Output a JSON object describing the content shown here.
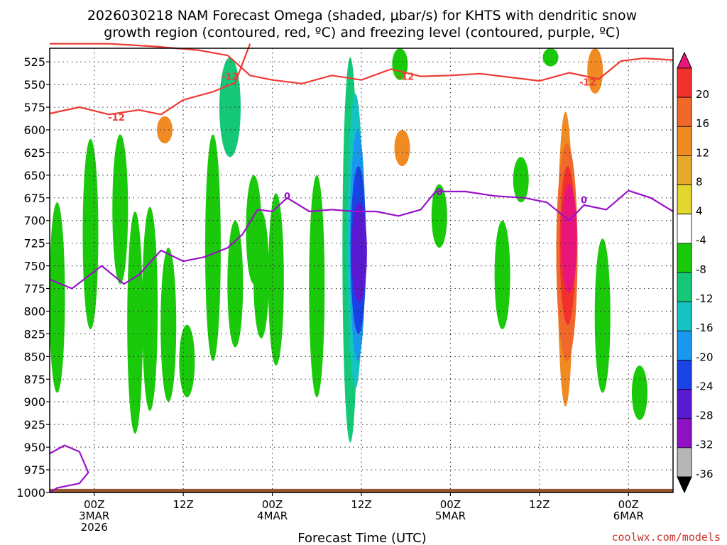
{
  "title_line1": "2026030218 NAM Forecast Omega (shaded, μbar/s) for KHTS with dendritic snow",
  "title_line2": "growth region (contoured, red, ºC) and freezing level (contoured, purple, ºC)",
  "credit": "coolwx.com/models",
  "chart_data": {
    "type": "heatmap",
    "xlabel": "Forecast Time (UTC)",
    "ylabel": "",
    "x_range_hours": [
      0,
      84
    ],
    "y_range_mb": [
      510,
      1000
    ],
    "y_ticks": [
      "525",
      "550",
      "575",
      "600",
      "625",
      "650",
      "675",
      "700",
      "725",
      "750",
      "775",
      "800",
      "825",
      "850",
      "875",
      "900",
      "925",
      "950",
      "975",
      "1000"
    ],
    "x_ticks": [
      {
        "hour": 6,
        "lines": [
          "00Z",
          "3MAR",
          "2026"
        ]
      },
      {
        "hour": 18,
        "lines": [
          "12Z"
        ]
      },
      {
        "hour": 30,
        "lines": [
          "00Z",
          "4MAR"
        ]
      },
      {
        "hour": 42,
        "lines": [
          "12Z"
        ]
      },
      {
        "hour": 54,
        "lines": [
          "00Z",
          "5MAR"
        ]
      },
      {
        "hour": 66,
        "lines": [
          "12Z"
        ]
      },
      {
        "hour": 78,
        "lines": [
          "00Z",
          "6MAR"
        ]
      }
    ],
    "grid": true,
    "colorbar": {
      "labels": [
        "20",
        "16",
        "12",
        "8",
        "4",
        "-4",
        "-8",
        "-12",
        "-16",
        "-20",
        "-24",
        "-28",
        "-32",
        "-36"
      ],
      "colors": [
        "#e8167a",
        "#f2302e",
        "#f0682a",
        "#f08a22",
        "#e7a92b",
        "#e3d630",
        "#ffffff",
        "#19c90a",
        "#14c878",
        "#16c3c3",
        "#1998ee",
        "#1a43e6",
        "#5a1ad2",
        "#8e12c4",
        "#b6b6b6",
        "#000000"
      ]
    },
    "omega_regions": [
      {
        "hour": 1.0,
        "p_top": 680,
        "p_bot": 890,
        "value": -6
      },
      {
        "hour": 5.5,
        "p_top": 610,
        "p_bot": 820,
        "value": -6
      },
      {
        "hour": 9.5,
        "p_top": 605,
        "p_bot": 770,
        "value": -6
      },
      {
        "hour": 11.5,
        "p_top": 690,
        "p_bot": 935,
        "value": -6
      },
      {
        "hour": 13.5,
        "p_top": 685,
        "p_bot": 910,
        "value": -6
      },
      {
        "hour": 16.0,
        "p_top": 730,
        "p_bot": 900,
        "value": -6
      },
      {
        "hour": 18.5,
        "p_top": 815,
        "p_bot": 895,
        "value": -6
      },
      {
        "hour": 22.0,
        "p_top": 605,
        "p_bot": 855,
        "value": -6
      },
      {
        "hour": 24.3,
        "p_top": 520,
        "p_bot": 630,
        "value": -10
      },
      {
        "hour": 25.0,
        "p_top": 700,
        "p_bot": 840,
        "value": -6
      },
      {
        "hour": 27.5,
        "p_top": 650,
        "p_bot": 770,
        "value": -6
      },
      {
        "hour": 28.5,
        "p_top": 690,
        "p_bot": 830,
        "value": -6
      },
      {
        "hour": 30.5,
        "p_top": 670,
        "p_bot": 860,
        "value": -6
      },
      {
        "hour": 36.0,
        "p_top": 650,
        "p_bot": 895,
        "value": -6
      },
      {
        "hour": 40.5,
        "p_top": 520,
        "p_bot": 945,
        "value": -8
      },
      {
        "hour": 41.2,
        "p_top": 560,
        "p_bot": 885,
        "value": -14
      },
      {
        "hour": 41.5,
        "p_top": 600,
        "p_bot": 855,
        "value": -18
      },
      {
        "hour": 41.6,
        "p_top": 640,
        "p_bot": 825,
        "value": -22
      },
      {
        "hour": 41.7,
        "p_top": 680,
        "p_bot": 790,
        "value": -26
      },
      {
        "hour": 47.2,
        "p_top": 510,
        "p_bot": 545,
        "value": -6
      },
      {
        "hour": 52.5,
        "p_top": 660,
        "p_bot": 730,
        "value": -6
      },
      {
        "hour": 61.0,
        "p_top": 700,
        "p_bot": 820,
        "value": -6
      },
      {
        "hour": 63.5,
        "p_top": 630,
        "p_bot": 680,
        "value": -6
      },
      {
        "hour": 67.5,
        "p_top": 510,
        "p_bot": 530,
        "value": -6
      },
      {
        "hour": 74.5,
        "p_top": 720,
        "p_bot": 890,
        "value": -6
      },
      {
        "hour": 79.5,
        "p_top": 860,
        "p_bot": 920,
        "value": -6
      }
    ],
    "omega_positive": [
      {
        "hour": 15.5,
        "p_top": 585,
        "p_bot": 615,
        "value": 6
      },
      {
        "hour": 47.5,
        "p_top": 600,
        "p_bot": 640,
        "value": 6
      },
      {
        "hour": 73.5,
        "p_top": 510,
        "p_bot": 560,
        "value": 6
      },
      {
        "hour": 69.5,
        "p_top": 580,
        "p_bot": 905,
        "value": 6
      },
      {
        "hour": 69.7,
        "p_top": 615,
        "p_bot": 855,
        "value": 10
      },
      {
        "hour": 69.8,
        "p_top": 640,
        "p_bot": 815,
        "value": 14
      },
      {
        "hour": 70.0,
        "p_top": 660,
        "p_bot": 780,
        "value": 18
      }
    ],
    "dgz_top_12C": [
      {
        "hour": 0,
        "p": 505
      },
      {
        "hour": 8,
        "p": 505
      },
      {
        "hour": 14,
        "p": 508
      },
      {
        "hour": 20,
        "p": 512
      },
      {
        "hour": 24,
        "p": 518
      },
      {
        "hour": 27,
        "p": 540
      },
      {
        "hour": 30,
        "p": 545
      },
      {
        "hour": 34,
        "p": 549
      },
      {
        "hour": 38,
        "p": 540
      },
      {
        "hour": 42,
        "p": 545
      },
      {
        "hour": 46,
        "p": 533
      },
      {
        "hour": 50,
        "p": 541
      },
      {
        "hour": 54,
        "p": 540
      },
      {
        "hour": 58,
        "p": 538
      },
      {
        "hour": 62,
        "p": 542
      },
      {
        "hour": 66,
        "p": 546
      },
      {
        "hour": 70,
        "p": 537
      },
      {
        "hour": 74,
        "p": 544
      },
      {
        "hour": 77,
        "p": 524
      },
      {
        "hour": 80,
        "p": 521
      },
      {
        "hour": 84,
        "p": 523
      }
    ],
    "dgz_bottom_12C": [
      {
        "hour": 0,
        "p": 582
      },
      {
        "hour": 4,
        "p": 575
      },
      {
        "hour": 8,
        "p": 583
      },
      {
        "hour": 12,
        "p": 578
      },
      {
        "hour": 15,
        "p": 583
      },
      {
        "hour": 18,
        "p": 567
      },
      {
        "hour": 22,
        "p": 558
      },
      {
        "hour": 25,
        "p": 548
      },
      {
        "hour": 27,
        "p": 505
      }
    ],
    "freezing_level_0C": [
      {
        "hour": 0,
        "p": 765
      },
      {
        "hour": 3,
        "p": 775
      },
      {
        "hour": 7,
        "p": 750
      },
      {
        "hour": 10,
        "p": 770
      },
      {
        "hour": 12,
        "p": 760
      },
      {
        "hour": 15,
        "p": 733
      },
      {
        "hour": 18,
        "p": 745
      },
      {
        "hour": 21,
        "p": 740
      },
      {
        "hour": 24,
        "p": 730
      },
      {
        "hour": 26,
        "p": 715
      },
      {
        "hour": 28,
        "p": 688
      },
      {
        "hour": 30,
        "p": 690
      },
      {
        "hour": 32,
        "p": 675
      },
      {
        "hour": 35,
        "p": 690
      },
      {
        "hour": 38,
        "p": 688
      },
      {
        "hour": 41,
        "p": 690
      },
      {
        "hour": 44,
        "p": 690
      },
      {
        "hour": 47,
        "p": 695
      },
      {
        "hour": 50,
        "p": 688
      },
      {
        "hour": 52,
        "p": 668
      },
      {
        "hour": 56,
        "p": 668
      },
      {
        "hour": 60,
        "p": 673
      },
      {
        "hour": 64,
        "p": 675
      },
      {
        "hour": 67,
        "p": 680
      },
      {
        "hour": 70,
        "p": 700
      },
      {
        "hour": 72,
        "p": 683
      },
      {
        "hour": 75,
        "p": 688
      },
      {
        "hour": 78,
        "p": 667
      },
      {
        "hour": 81,
        "p": 675
      },
      {
        "hour": 84,
        "p": 690
      }
    ],
    "freezing_level_loop": [
      {
        "hour": 0,
        "p": 957
      },
      {
        "hour": 2,
        "p": 948
      },
      {
        "hour": 4,
        "p": 955
      },
      {
        "hour": 5.2,
        "p": 978
      },
      {
        "hour": 4,
        "p": 990
      },
      {
        "hour": 1,
        "p": 995
      },
      {
        "hour": 0,
        "p": 1000
      }
    ],
    "contour_labels": [
      {
        "text": "-12",
        "hour": 24.3,
        "p": 541,
        "kind": "dgz"
      },
      {
        "text": "-12",
        "hour": 9.0,
        "p": 586,
        "kind": "dgz"
      },
      {
        "text": "-12",
        "hour": 48.0,
        "p": 541,
        "kind": "dgz"
      },
      {
        "text": "-12",
        "hour": 72.5,
        "p": 547,
        "kind": "dgz"
      },
      {
        "text": "0",
        "hour": 32.0,
        "p": 673,
        "kind": "fzl"
      },
      {
        "text": "0",
        "hour": 52.5,
        "p": 668,
        "kind": "fzl"
      },
      {
        "text": "0",
        "hour": 72.0,
        "p": 677,
        "kind": "fzl"
      }
    ],
    "terrain_p": 996
  }
}
